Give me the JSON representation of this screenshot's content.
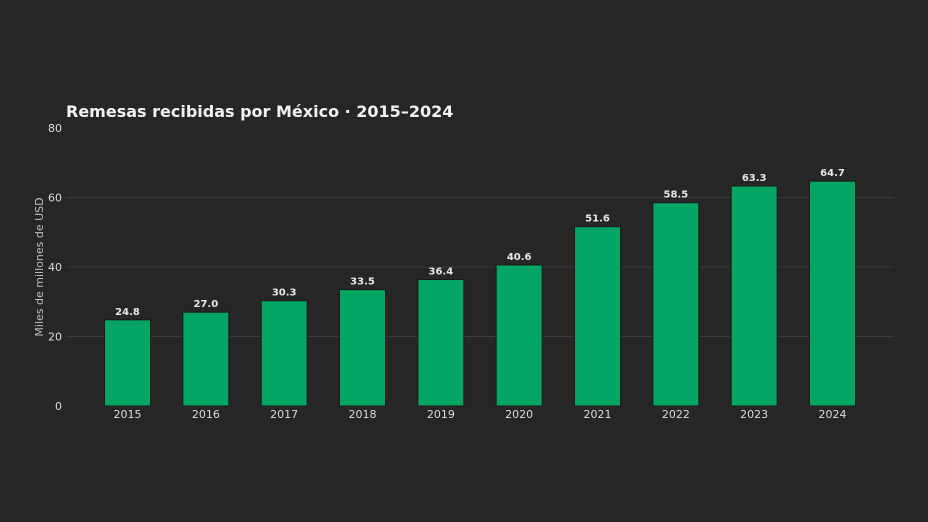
{
  "chart_data": {
    "type": "bar",
    "title": "Remesas recibidas por México · 2015–2024",
    "xlabel": "",
    "ylabel": "Miles de millones de USD",
    "categories": [
      "2015",
      "2016",
      "2017",
      "2018",
      "2019",
      "2020",
      "2021",
      "2022",
      "2023",
      "2024"
    ],
    "values": [
      24.8,
      27.0,
      30.3,
      33.5,
      36.4,
      40.6,
      51.6,
      58.5,
      63.3,
      64.7
    ],
    "data_labels": [
      "24.8",
      "27.0",
      "30.3",
      "33.5",
      "36.4",
      "40.6",
      "51.6",
      "58.5",
      "63.3",
      "64.7"
    ],
    "ylim": [
      0,
      80
    ],
    "yticks": [
      0,
      20,
      40,
      60,
      80
    ],
    "grid": true,
    "legend": "none",
    "colors": {
      "background": "#262626",
      "bar": "#00a463",
      "grid": "#3b3b3b"
    }
  }
}
